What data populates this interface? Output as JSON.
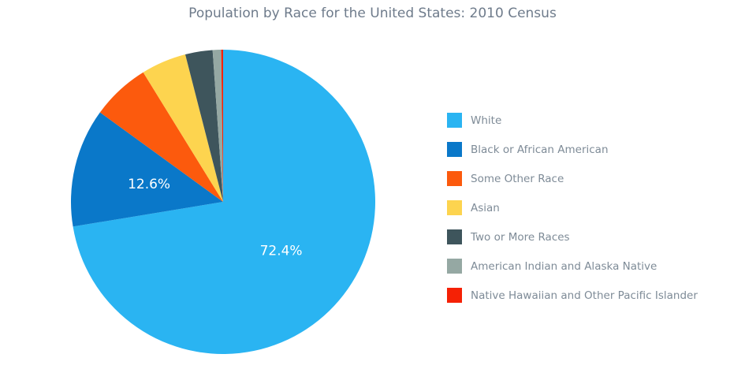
{
  "chart_data": {
    "type": "pie",
    "title": "Population by Race for the United States: 2010 Census",
    "labels": [
      "White",
      "Black or African American",
      "Some Other Race",
      "Asian",
      "Two or More Races",
      "American Indian and Alaska Native",
      "Native Hawaiian and Other Pacific Islander"
    ],
    "values": [
      72.4,
      12.6,
      6.2,
      4.8,
      2.9,
      0.9,
      0.2
    ],
    "colors": [
      "#2ab4f2",
      "#0a78c9",
      "#fc5a0d",
      "#fdd44f",
      "#3e555c",
      "#95a8a3",
      "#f52105"
    ],
    "slice_labels": [
      "72.4%",
      "12.6%",
      "",
      "",
      "",
      "",
      ""
    ],
    "slice_label_color": "#ffffff",
    "start_angle": "12 o'clock",
    "direction": "clockwise",
    "legend_position": "right",
    "background_color": "#ffffff",
    "title_color": "#6e7b8b",
    "legend_text_color": "#7e8b97"
  }
}
